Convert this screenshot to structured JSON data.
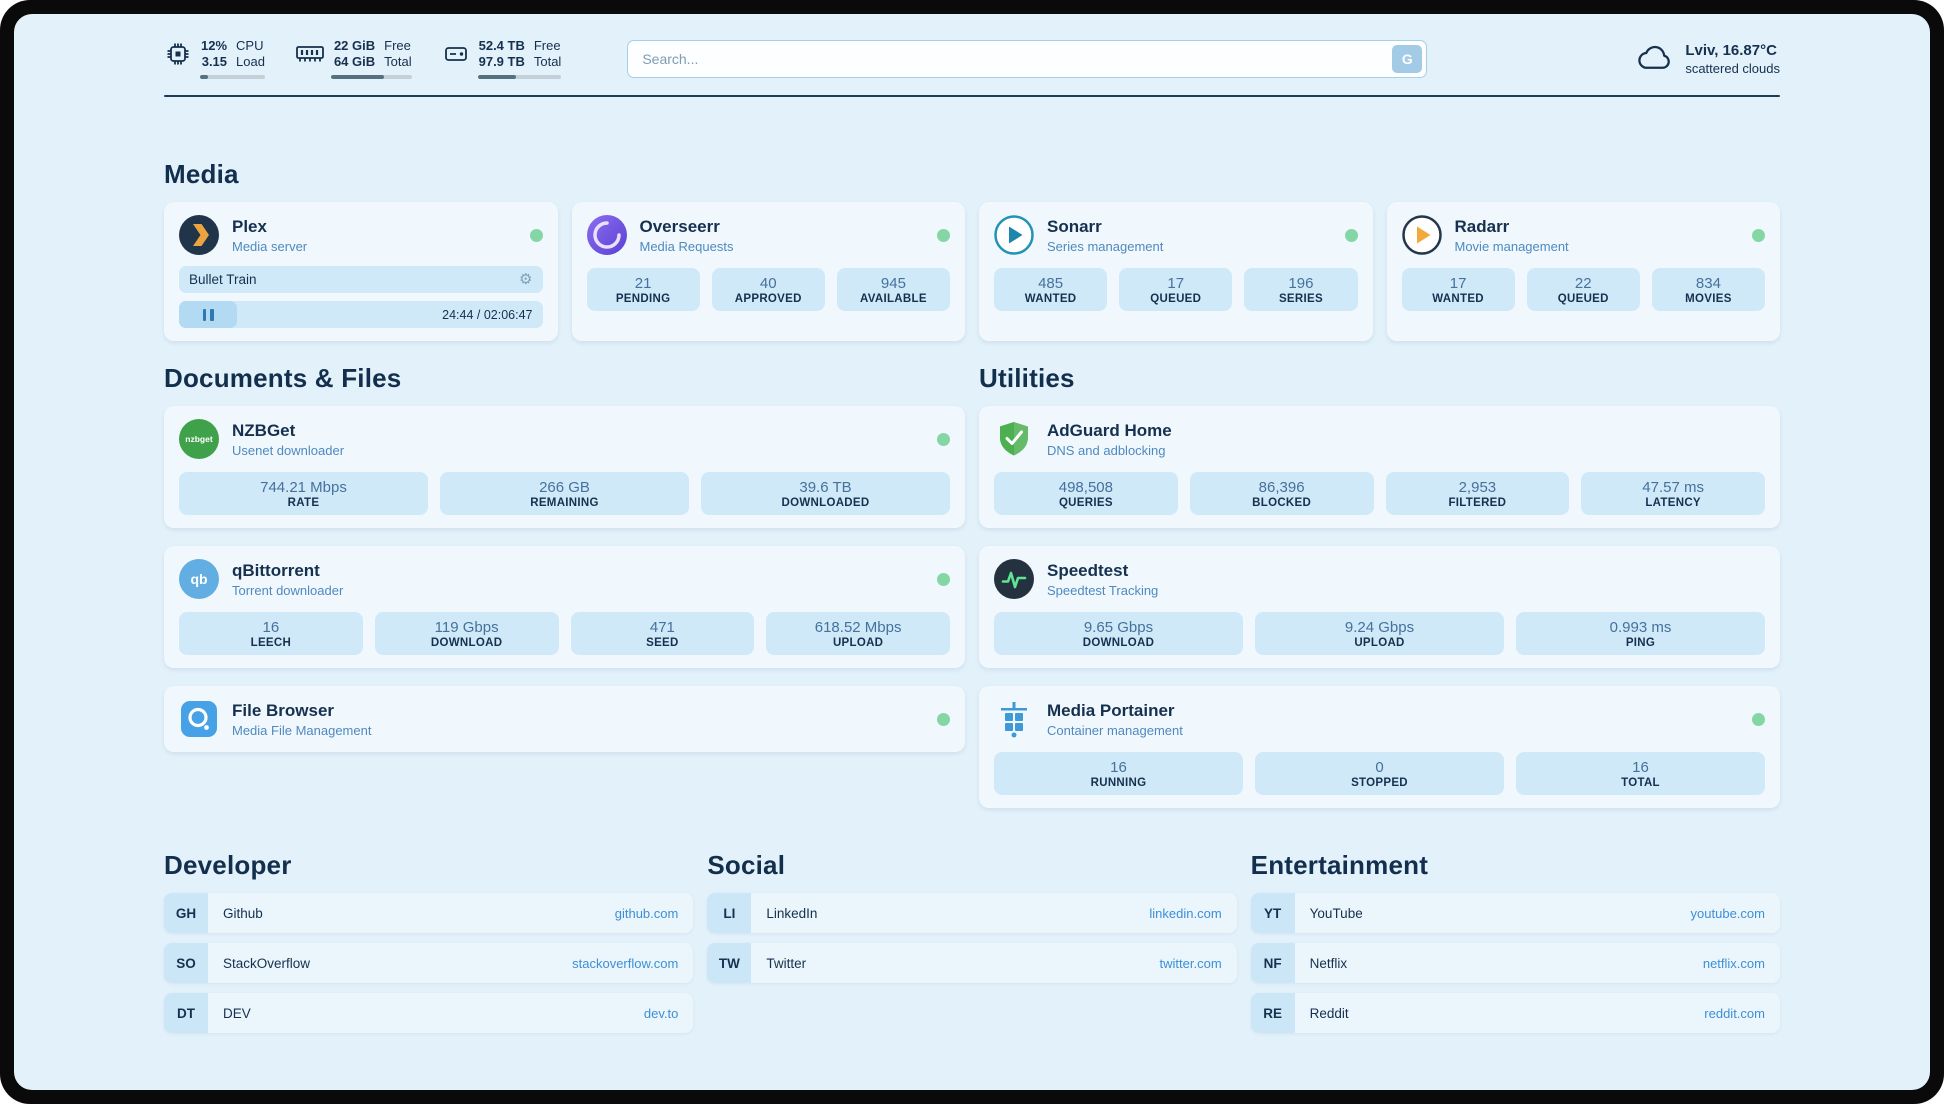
{
  "colors": {
    "background": "#e3f1fa",
    "card": "#f1f8fd",
    "stat_box": "#d0e9f8",
    "text_primary": "#15314f",
    "link_blue": "#3d8fd6",
    "status_online_green": "#84d7a5"
  },
  "topbar": {
    "cpu": {
      "icon": "cpu-chip-icon",
      "value_top": "12%",
      "value_bottom": "3.15",
      "label_top": "CPU",
      "label_bottom": "Load",
      "bar_percent": 12
    },
    "ram": {
      "icon": "ram-icon",
      "value_top": "22 GiB",
      "value_bottom": "64 GiB",
      "label_top": "Free",
      "label_bottom": "Total",
      "bar_percent": 66
    },
    "disk": {
      "icon": "disk-icon",
      "value_top": "52.4 TB",
      "value_bottom": "97.9 TB",
      "label_top": "Free",
      "label_bottom": "Total",
      "bar_percent": 46
    },
    "search": {
      "placeholder": "Search...",
      "button_label": "G"
    },
    "weather": {
      "icon": "cloud-icon",
      "location": "Lviv, 16.87°C",
      "condition": "scattered clouds"
    }
  },
  "sections": {
    "media": {
      "title": "Media",
      "apps": [
        {
          "name": "Plex",
          "desc": "Media server",
          "icon": "plex-icon",
          "status": "online",
          "player": {
            "title": "Bullet Train",
            "time": "24:44 / 02:06:47"
          }
        },
        {
          "name": "Overseerr",
          "desc": "Media Requests",
          "icon": "overseerr-icon",
          "status": "online",
          "stats": [
            {
              "value": "21",
              "label": "PENDING"
            },
            {
              "value": "40",
              "label": "APPROVED"
            },
            {
              "value": "945",
              "label": "AVAILABLE"
            }
          ]
        },
        {
          "name": "Sonarr",
          "desc": "Series management",
          "icon": "sonarr-icon",
          "status": "online",
          "stats": [
            {
              "value": "485",
              "label": "WANTED"
            },
            {
              "value": "17",
              "label": "QUEUED"
            },
            {
              "value": "196",
              "label": "SERIES"
            }
          ]
        },
        {
          "name": "Radarr",
          "desc": "Movie management",
          "icon": "radarr-icon",
          "status": "online",
          "stats": [
            {
              "value": "17",
              "label": "WANTED"
            },
            {
              "value": "22",
              "label": "QUEUED"
            },
            {
              "value": "834",
              "label": "MOVIES"
            }
          ]
        }
      ]
    },
    "documents": {
      "title": "Documents & Files",
      "apps": [
        {
          "name": "NZBGet",
          "desc": "Usenet downloader",
          "icon": "nzbget-icon",
          "status": "online",
          "stats": [
            {
              "value": "744.21 Mbps",
              "label": "RATE"
            },
            {
              "value": "266 GB",
              "label": "REMAINING"
            },
            {
              "value": "39.6 TB",
              "label": "DOWNLOADED"
            }
          ]
        },
        {
          "name": "qBittorrent",
          "desc": "Torrent downloader",
          "icon": "qbittorrent-icon",
          "status": "online",
          "stats": [
            {
              "value": "16",
              "label": "LEECH"
            },
            {
              "value": "119 Gbps",
              "label": "DOWNLOAD"
            },
            {
              "value": "471",
              "label": "SEED"
            },
            {
              "value": "618.52 Mbps",
              "label": "UPLOAD"
            }
          ]
        },
        {
          "name": "File Browser",
          "desc": "Media File Management",
          "icon": "filebrowser-icon",
          "status": "online"
        }
      ]
    },
    "utilities": {
      "title": "Utilities",
      "apps": [
        {
          "name": "AdGuard Home",
          "desc": "DNS and adblocking",
          "icon": "adguard-shield-icon",
          "stats": [
            {
              "value": "498,508",
              "label": "QUERIES"
            },
            {
              "value": "86,396",
              "label": "BLOCKED"
            },
            {
              "value": "2,953",
              "label": "FILTERED"
            },
            {
              "value": "47.57 ms",
              "label": "LATENCY"
            }
          ]
        },
        {
          "name": "Speedtest",
          "desc": "Speedtest Tracking",
          "icon": "speedtest-icon",
          "stats": [
            {
              "value": "9.65 Gbps",
              "label": "DOWNLOAD"
            },
            {
              "value": "9.24 Gbps",
              "label": "UPLOAD"
            },
            {
              "value": "0.993 ms",
              "label": "PING"
            }
          ]
        },
        {
          "name": "Media Portainer",
          "desc": "Container management",
          "icon": "portainer-icon",
          "status": "online",
          "stats": [
            {
              "value": "16",
              "label": "RUNNING"
            },
            {
              "value": "0",
              "label": "STOPPED"
            },
            {
              "value": "16",
              "label": "TOTAL"
            }
          ]
        }
      ]
    }
  },
  "bookmarks": [
    {
      "title": "Developer",
      "links": [
        {
          "abbr": "GH",
          "name": "Github",
          "url": "github.com"
        },
        {
          "abbr": "SO",
          "name": "StackOverflow",
          "url": "stackoverflow.com"
        },
        {
          "abbr": "DT",
          "name": "DEV",
          "url": "dev.to"
        }
      ]
    },
    {
      "title": "Social",
      "links": [
        {
          "abbr": "LI",
          "name": "LinkedIn",
          "url": "linkedin.com"
        },
        {
          "abbr": "TW",
          "name": "Twitter",
          "url": "twitter.com"
        }
      ]
    },
    {
      "title": "Entertainment",
      "links": [
        {
          "abbr": "YT",
          "name": "YouTube",
          "url": "youtube.com"
        },
        {
          "abbr": "NF",
          "name": "Netflix",
          "url": "netflix.com"
        },
        {
          "abbr": "RE",
          "name": "Reddit",
          "url": "reddit.com"
        }
      ]
    }
  ]
}
